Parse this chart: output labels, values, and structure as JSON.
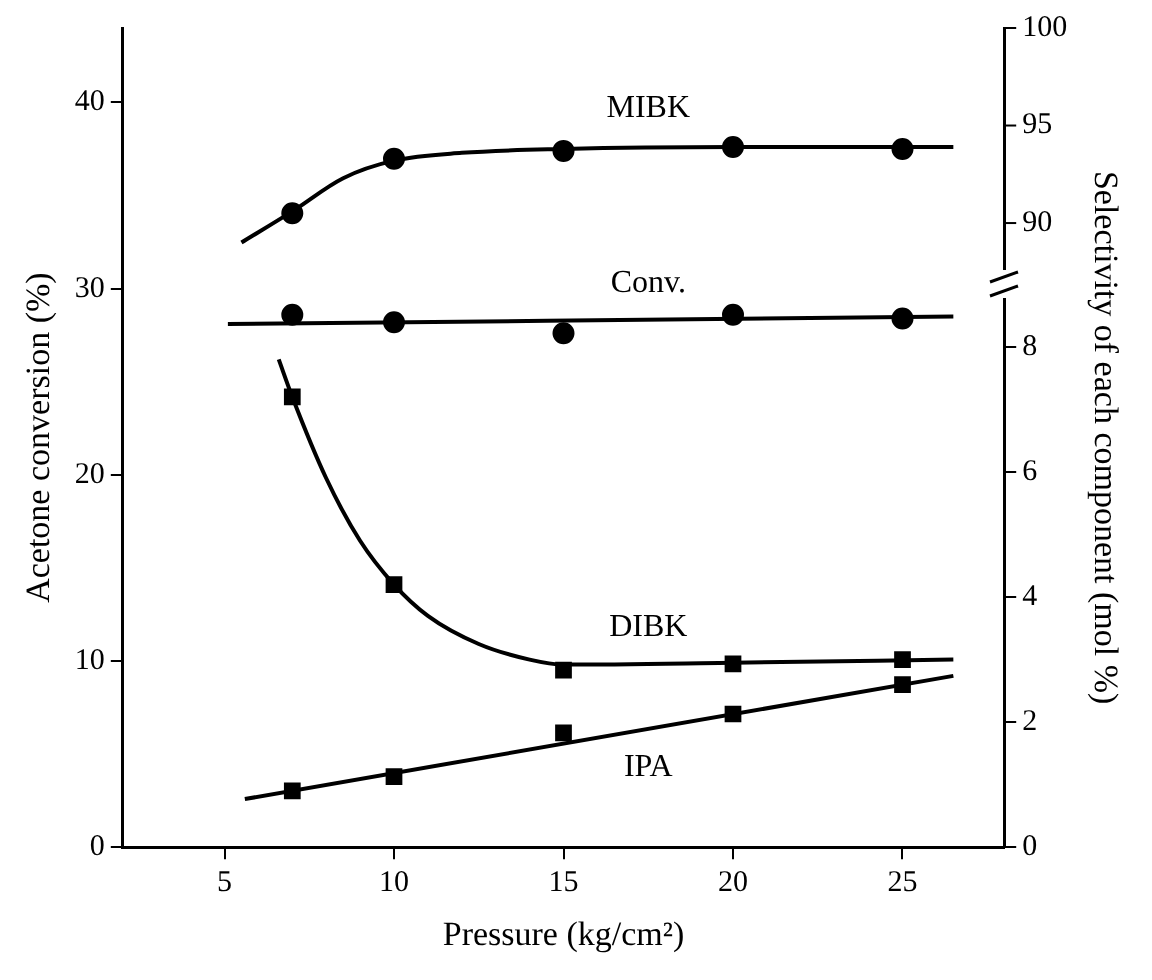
{
  "chart_data": {
    "type": "scatter",
    "xlabel": "Pressure (kg/cm²)",
    "ylabel": "Acetone conversion (%)",
    "y2label": "Selectivity of each component (mol %)",
    "x": [
      7,
      10,
      15,
      20,
      25
    ],
    "xlim": [
      2,
      28
    ],
    "xticks": [
      5,
      10,
      15,
      20,
      25
    ],
    "ylim": [
      0,
      44
    ],
    "yticks": [
      0,
      10,
      20,
      30,
      40
    ],
    "y2lim": [
      0,
      13.1
    ],
    "y2ticks": [
      0,
      2,
      4,
      6,
      8
    ],
    "y3lim": [
      58,
      100
    ],
    "y3ticks": [
      90,
      95,
      100
    ],
    "grid": false,
    "legend": false,
    "series": [
      {
        "name": "MIBK",
        "marker": "circle",
        "axis": "y3",
        "color": "#000000",
        "values": [
          90.5,
          93.3,
          93.7,
          93.9,
          93.8
        ]
      },
      {
        "type": "line",
        "marker": "none",
        "axis": "y3",
        "color": "#000000",
        "x": [
          5.5,
          7,
          8.5,
          10,
          12,
          15,
          20,
          26.5
        ],
        "values": [
          89.0,
          90.6,
          92.3,
          93.2,
          93.6,
          93.8,
          93.9,
          93.9
        ]
      },
      {
        "name": "Conv.",
        "marker": "circle",
        "color": "#000000",
        "values": [
          28.6,
          28.2,
          27.6,
          28.6,
          28.4
        ]
      },
      {
        "type": "line",
        "marker": "none",
        "color": "#000000",
        "x": [
          5.1,
          26.5
        ],
        "values": [
          28.1,
          28.5
        ]
      },
      {
        "name": "DIBK",
        "marker": "square",
        "axis": "y2",
        "color": "#000000",
        "values": [
          7.2,
          4.2,
          2.83,
          2.93,
          3.0
        ]
      },
      {
        "type": "line",
        "marker": "none",
        "axis": "y2",
        "color": "#000000",
        "x": [
          6.6,
          7,
          8,
          9,
          10,
          11,
          12.5,
          14,
          15,
          20,
          26.5
        ],
        "values": [
          7.8,
          7.2,
          5.9,
          4.9,
          4.2,
          3.7,
          3.25,
          3.0,
          2.92,
          2.95,
          3.0
        ]
      },
      {
        "name": "IPA",
        "marker": "square",
        "axis": "y2",
        "color": "#000000",
        "values": [
          0.9,
          1.13,
          1.83,
          2.13,
          2.6
        ]
      },
      {
        "type": "line",
        "marker": "none",
        "axis": "y2",
        "color": "#000000",
        "x": [
          5.6,
          26.5
        ],
        "values": [
          0.77,
          2.74
        ]
      }
    ]
  }
}
